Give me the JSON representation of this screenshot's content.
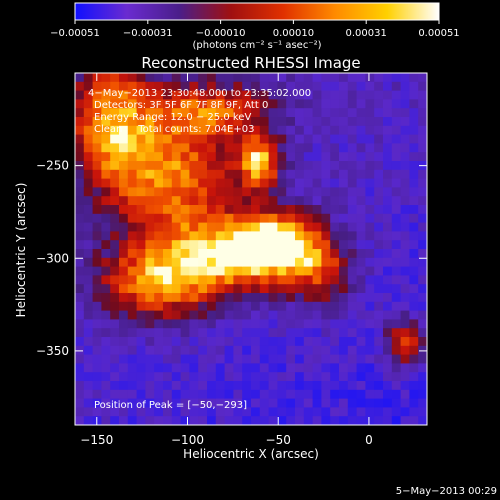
{
  "chart_data": {
    "type": "heatmap",
    "title": "Reconstructed RHESSI Image",
    "xlabel": "Heliocentric X (arcsec)",
    "ylabel": "Heliocentric Y (arcsec)",
    "xlim": [
      -162,
      32
    ],
    "ylim": [
      -390,
      -200
    ],
    "xticks": [
      -150,
      -100,
      -50,
      0
    ],
    "xtick_labels": [
      "−150",
      "−100",
      "−50",
      "0"
    ],
    "yticks": [
      -250,
      -300,
      -350
    ],
    "ytick_labels": [
      "−250",
      "−300",
      "−350"
    ],
    "colorbar": {
      "range": [
        -0.00051,
        0.00051
      ],
      "tick_labels": [
        "−0.00051",
        "−0.00031",
        "−0.00010",
        "0.00010",
        "0.00031",
        "0.00051"
      ],
      "unit_label": "(photons cm⁻² s⁻¹ asec⁻²)",
      "colormap": [
        "#1010ff",
        "#6a2bd0",
        "#4a1e8a",
        "#a01010",
        "#e03000",
        "#ff8a00",
        "#ffd000",
        "#ffffff"
      ]
    },
    "annotations": [
      "4−May−2013 23:30:48.000 to 23:35:02.000",
      "Detectors: 3F 5F 6F 7F 8F 9F, Att 0",
      "Energy Range: 12.0 − 25.0 keV",
      "Clean     Total counts: 7.04E+03"
    ],
    "peak_label": "Position of Peak = [−50,−293]",
    "peak": {
      "x": -50,
      "y": -293
    },
    "sources": [
      {
        "x": -50,
        "y": -293,
        "sx": 18,
        "sy": 12,
        "amp": 1.0
      },
      {
        "x": -85,
        "y": -300,
        "sx": 28,
        "sy": 16,
        "amp": 0.75
      },
      {
        "x": -110,
        "y": -255,
        "sx": 26,
        "sy": 22,
        "amp": 0.7
      },
      {
        "x": -142,
        "y": -225,
        "sx": 16,
        "sy": 22,
        "amp": 0.65
      },
      {
        "x": -60,
        "y": -248,
        "sx": 8,
        "sy": 10,
        "amp": 0.82
      },
      {
        "x": -120,
        "y": -315,
        "sx": 22,
        "sy": 14,
        "amp": 0.6
      },
      {
        "x": -85,
        "y": -220,
        "sx": 22,
        "sy": 10,
        "amp": 0.55
      },
      {
        "x": 20,
        "y": -345,
        "sx": 8,
        "sy": 9,
        "amp": 0.72
      },
      {
        "x": -25,
        "y": -310,
        "sx": 12,
        "sy": 14,
        "amp": 0.45
      }
    ]
  },
  "timestamp": "5−May−2013 00:29"
}
